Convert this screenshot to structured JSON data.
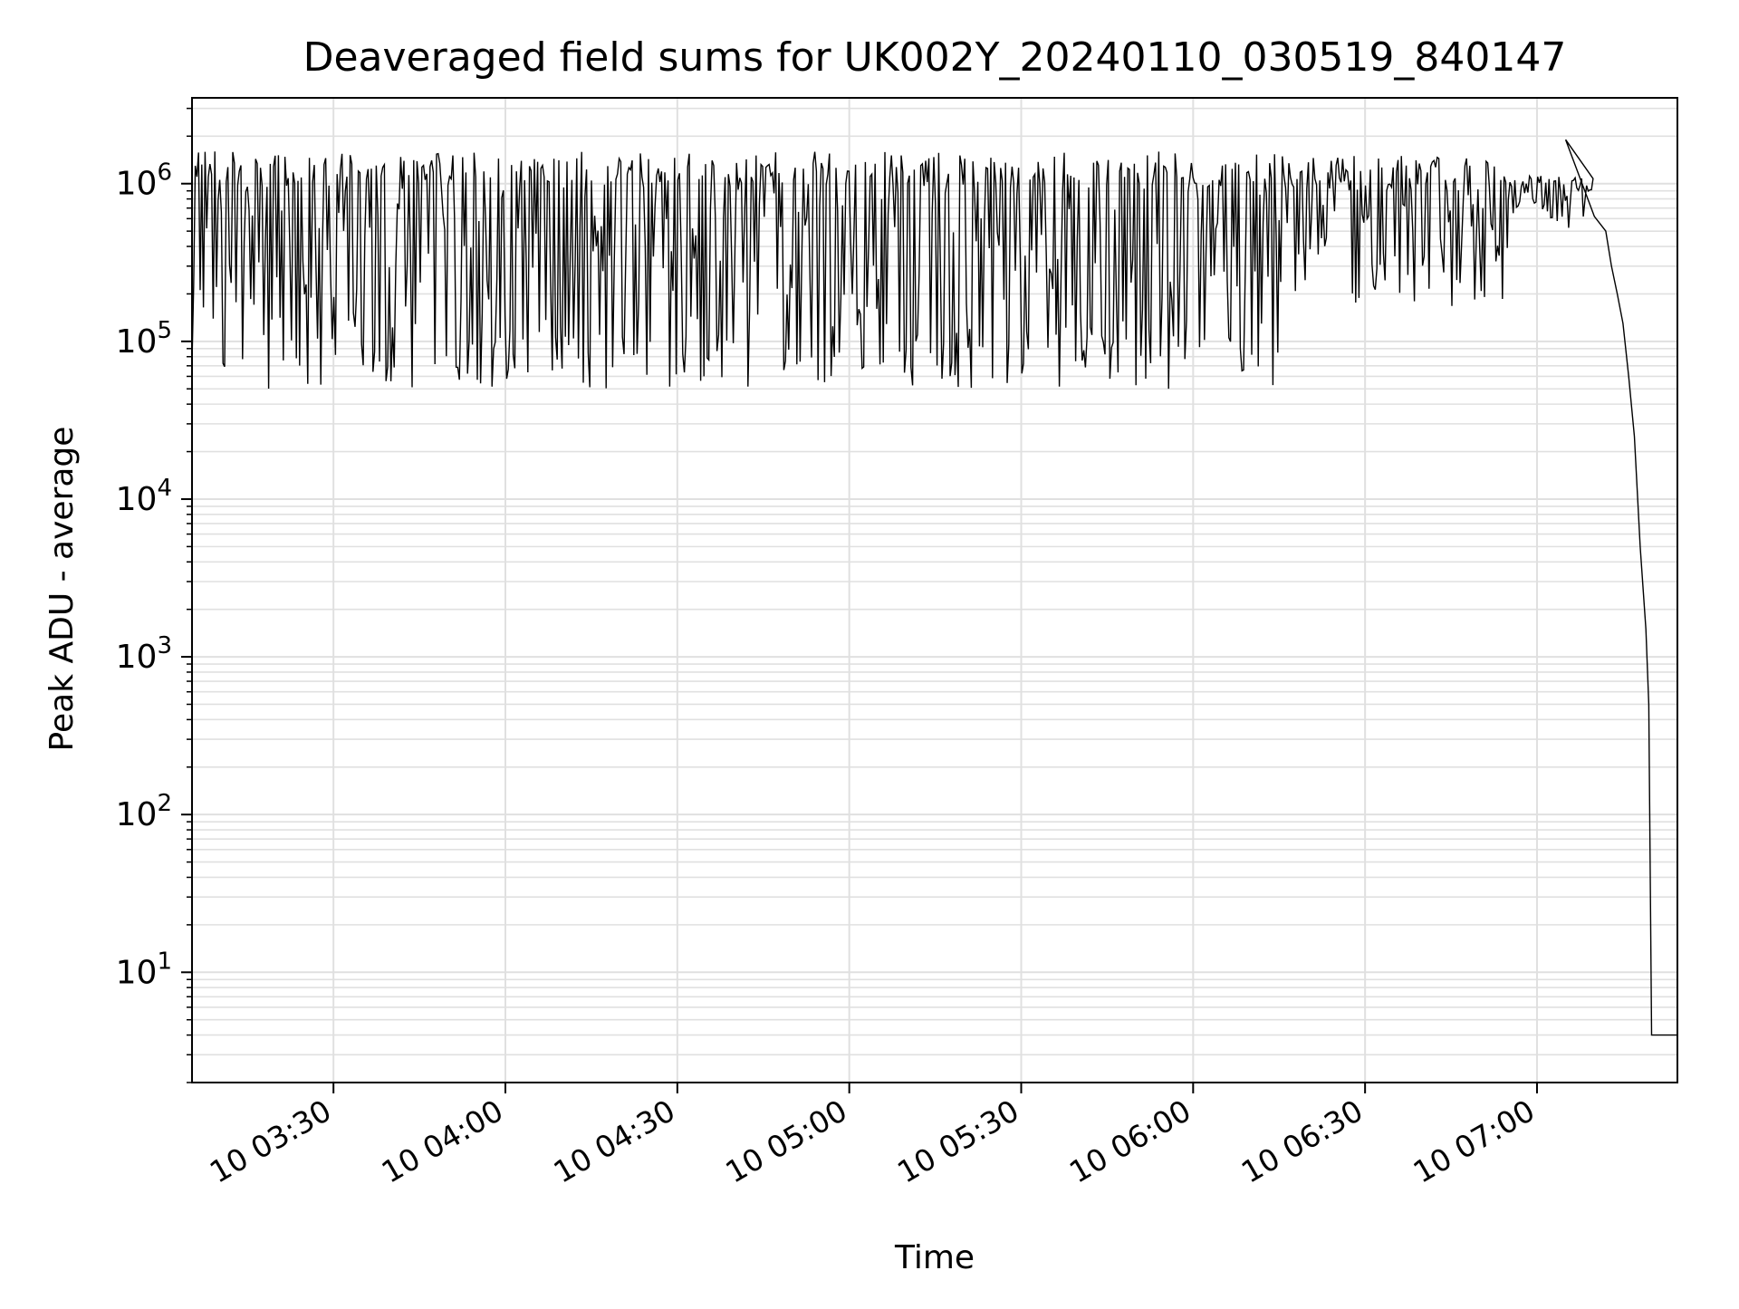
{
  "chart_data": {
    "type": "line",
    "title": "Deaveraged field sums for UK002Y_20240110_030519_840147",
    "xlabel": "Time",
    "ylabel": "Peak ADU - average",
    "yscale": "log",
    "ylim": [
      2,
      3500000
    ],
    "xlim": [
      "2024-01-10 03:05:19",
      "2024-01-10 07:24:30"
    ],
    "grid": true,
    "legend": "none",
    "line_color": "#000000",
    "grid_color": "#e0e0e0",
    "x_ticks": [
      {
        "time": "2024-01-10 03:30:00",
        "label": "10 03:30"
      },
      {
        "time": "2024-01-10 04:00:00",
        "label": "10 04:00"
      },
      {
        "time": "2024-01-10 04:30:00",
        "label": "10 04:30"
      },
      {
        "time": "2024-01-10 05:00:00",
        "label": "10 05:00"
      },
      {
        "time": "2024-01-10 05:30:00",
        "label": "10 05:30"
      },
      {
        "time": "2024-01-10 06:00:00",
        "label": "10 06:00"
      },
      {
        "time": "2024-01-10 06:30:00",
        "label": "10 06:30"
      },
      {
        "time": "2024-01-10 07:00:00",
        "label": "10 07:00"
      }
    ],
    "y_ticks": [
      {
        "value": 10,
        "base": "10",
        "exp": "1"
      },
      {
        "value": 100,
        "base": "10",
        "exp": "2"
      },
      {
        "value": 1000,
        "base": "10",
        "exp": "3"
      },
      {
        "value": 10000,
        "base": "10",
        "exp": "4"
      },
      {
        "value": 100000,
        "base": "10",
        "exp": "5"
      },
      {
        "value": 1000000,
        "base": "10",
        "exp": "6"
      }
    ],
    "series": [
      {
        "segments": [
          {
            "start": "2024-01-10 03:05:19",
            "end": "2024-01-10 06:15:00",
            "behavior": "noisy",
            "upper": 1600000,
            "lower": 50000
          },
          {
            "start": "2024-01-10 06:15:00",
            "end": "2024-01-10 06:55:00",
            "behavior": "noisy",
            "upper": 1500000,
            "lower": 150000
          },
          {
            "start": "2024-01-10 06:55:00",
            "end": "2024-01-10 07:10:00",
            "behavior": "noisy",
            "upper": 1000000,
            "lower": 500000
          }
        ],
        "points": [
          [
            "2024-01-10 07:05:00",
            1900000
          ],
          [
            "2024-01-10 07:10:00",
            620000
          ],
          [
            "2024-01-10 07:12:00",
            500000
          ],
          [
            "2024-01-10 07:13:00",
            300000
          ],
          [
            "2024-01-10 07:14:00",
            200000
          ],
          [
            "2024-01-10 07:15:00",
            130000
          ],
          [
            "2024-01-10 07:16:00",
            60000
          ],
          [
            "2024-01-10 07:17:00",
            25000
          ],
          [
            "2024-01-10 07:18:00",
            5000
          ],
          [
            "2024-01-10 07:19:00",
            1500
          ],
          [
            "2024-01-10 07:19:30",
            500
          ],
          [
            "2024-01-10 07:20:00",
            4
          ],
          [
            "2024-01-10 07:24:30",
            4
          ]
        ]
      }
    ]
  }
}
